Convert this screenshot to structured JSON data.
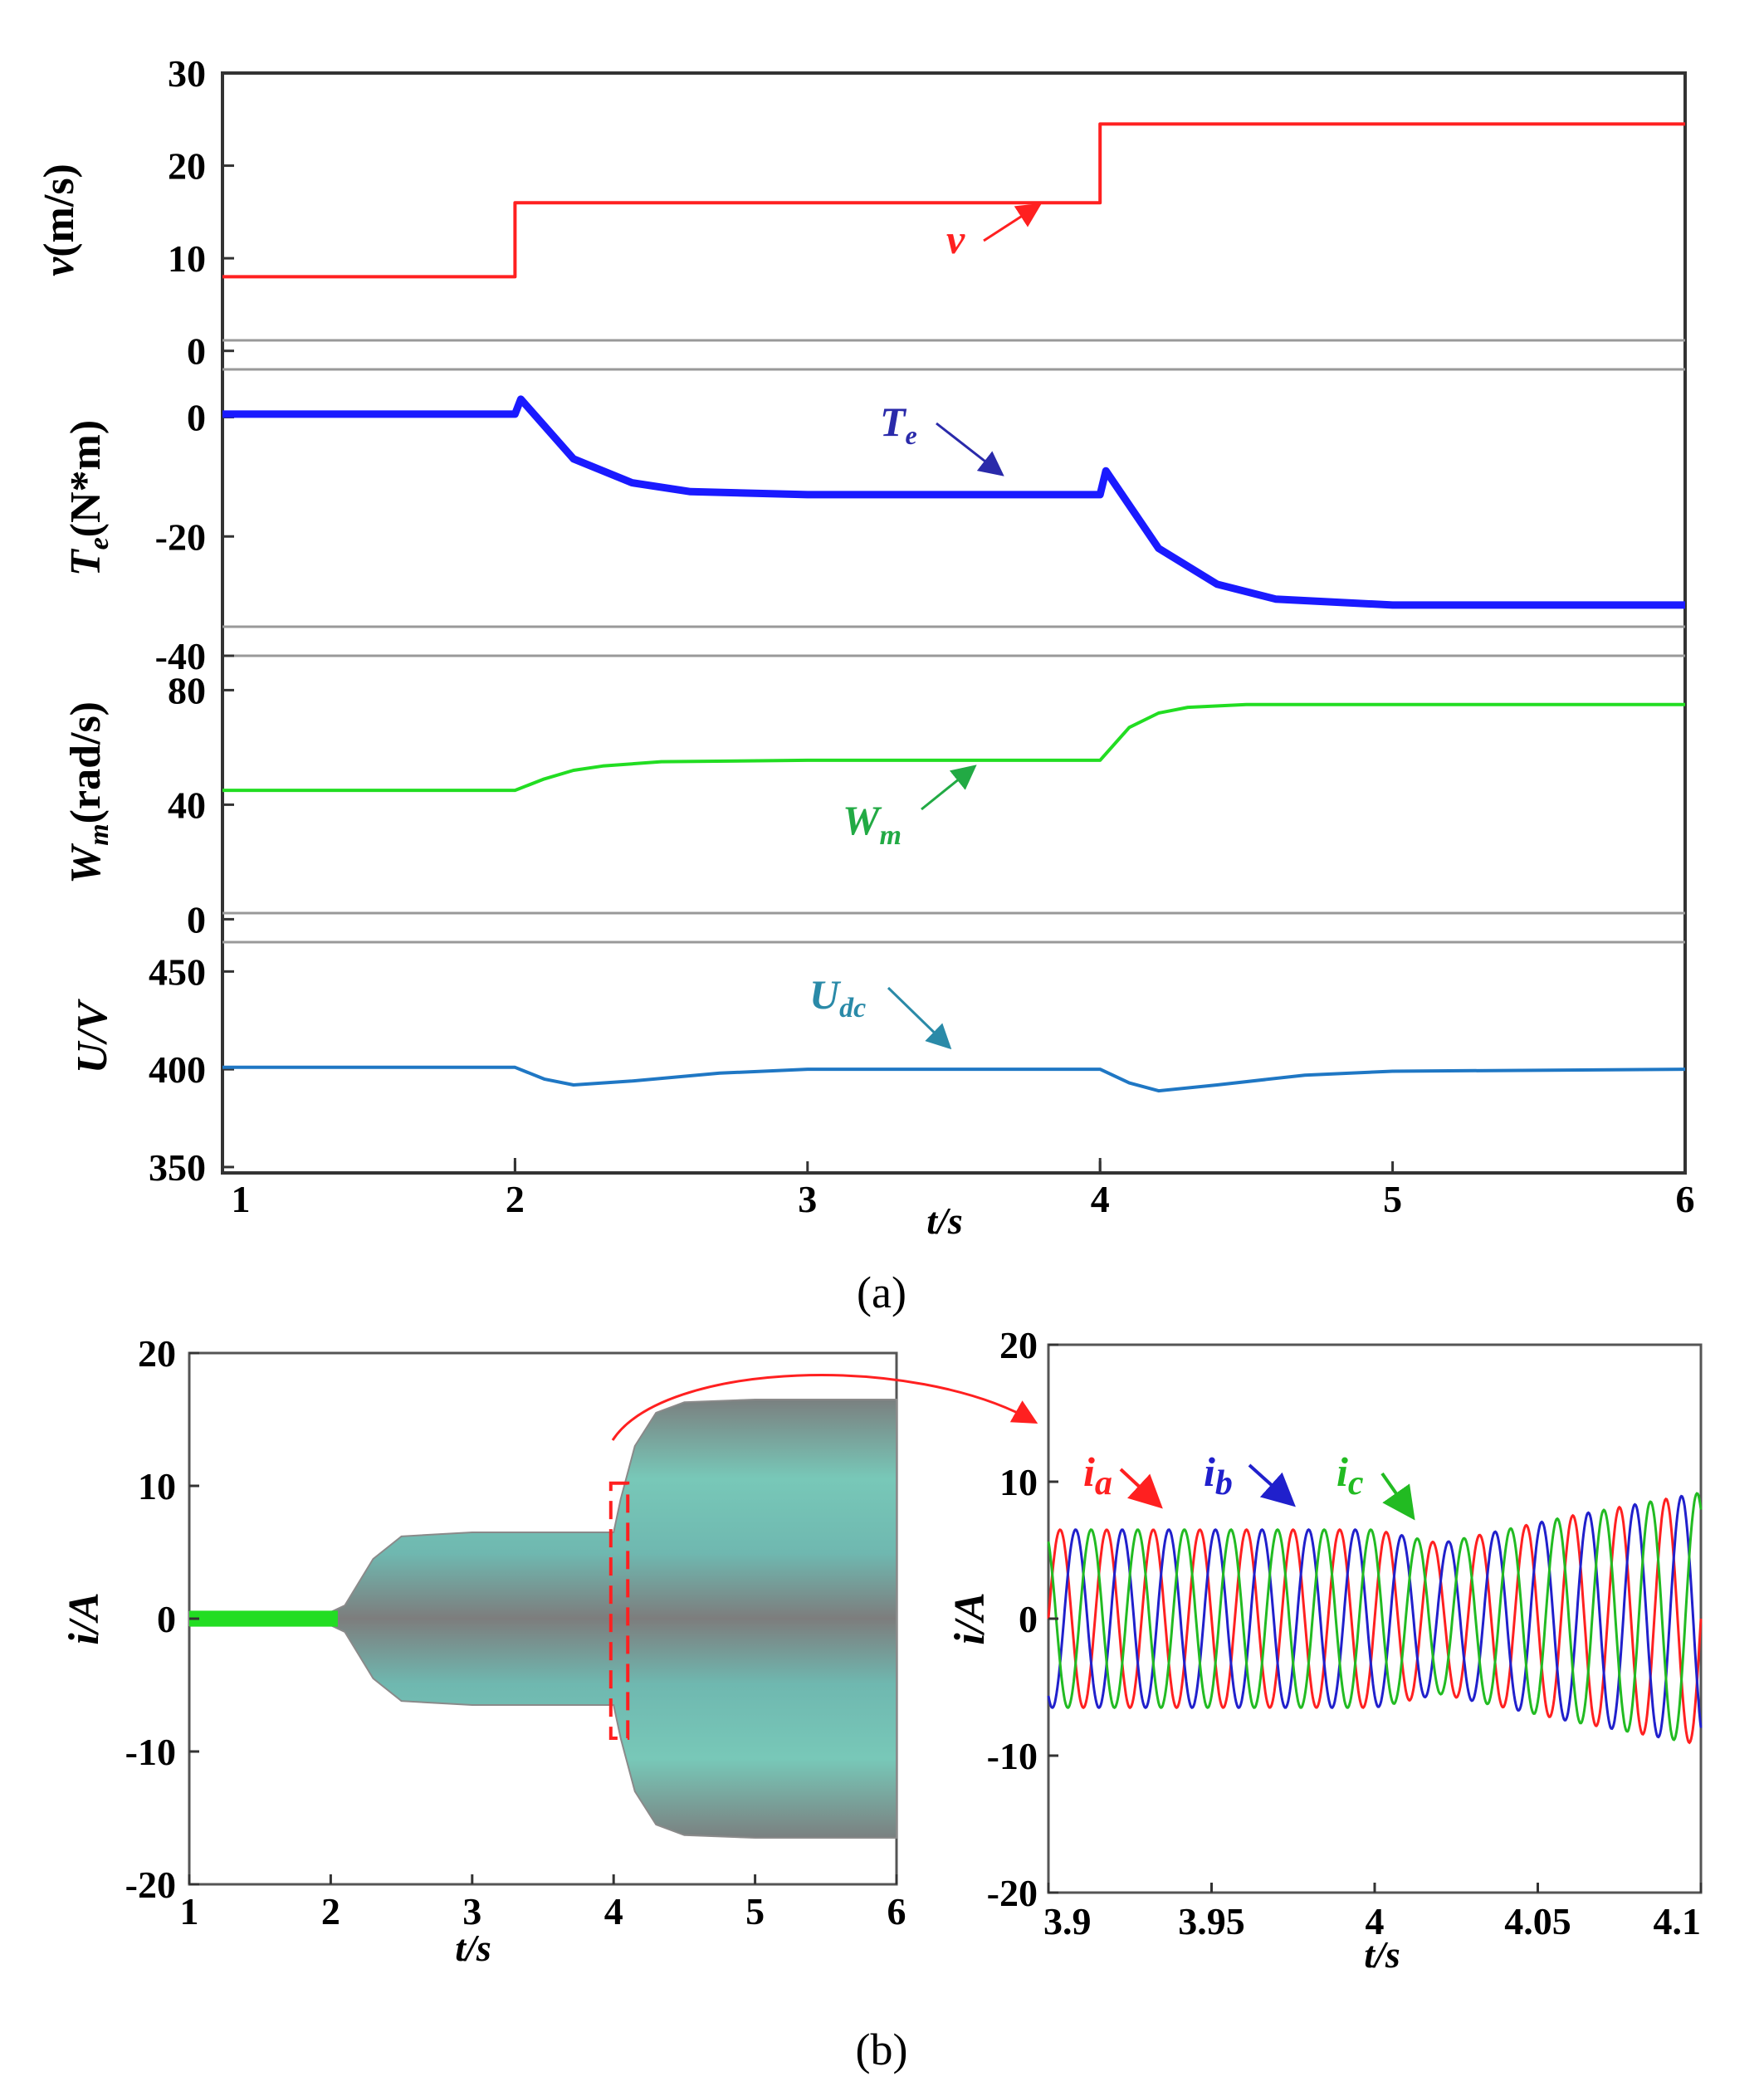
{
  "chart_data": [
    {
      "type": "line",
      "panel": "a",
      "caption": "(a)",
      "xlabel": "t/s",
      "xlim": [
        1,
        6
      ],
      "xticks": [
        "1",
        "2",
        "3",
        "4",
        "5",
        "6"
      ],
      "subplots": [
        {
          "ylabel": "v(m/s)",
          "ylim": [
            -2,
            30
          ],
          "yticks": [
            "30",
            "20",
            "10",
            "0"
          ],
          "series": [
            {
              "name": "v",
              "color": "#ff2020",
              "x": [
                1,
                2,
                2,
                4,
                4,
                6
              ],
              "y": [
                8,
                8,
                16,
                16,
                24.5,
                24.5
              ]
            }
          ],
          "annotation": "v"
        },
        {
          "ylabel": "Te(N*m)",
          "ylim": [
            -40,
            8
          ],
          "yticks": [
            "0",
            "-20",
            "-40"
          ],
          "series": [
            {
              "name": "Te",
              "color": "#1a1aff",
              "x": [
                1,
                2,
                2.02,
                2.2,
                2.4,
                2.6,
                3,
                4,
                4.02,
                4.2,
                4.4,
                4.6,
                5,
                6
              ],
              "y": [
                0.5,
                0.5,
                3,
                -7,
                -11,
                -12.5,
                -13,
                -13,
                -9,
                -22,
                -28,
                -30.5,
                -31.5,
                -31.5
              ]
            }
          ],
          "annotation": "Te"
        },
        {
          "ylabel": "Wm(rad/s)",
          "ylim": [
            -8,
            92
          ],
          "yticks": [
            "80",
            "40",
            "0"
          ],
          "series": [
            {
              "name": "Wm",
              "color": "#22dd22",
              "x": [
                1,
                2,
                2.1,
                2.2,
                2.3,
                2.5,
                3,
                4,
                4.1,
                4.2,
                4.3,
                4.5,
                5,
                6
              ],
              "y": [
                45,
                45,
                49,
                52,
                53.5,
                55,
                55.5,
                55.5,
                67,
                72,
                74,
                75,
                75,
                75
              ]
            }
          ],
          "annotation": "Wm"
        },
        {
          "ylabel": "U/V",
          "ylim": [
            347,
            465
          ],
          "yticks": [
            "450",
            "400",
            "350"
          ],
          "series": [
            {
              "name": "Udc",
              "color": "#1f77c4",
              "x": [
                1,
                2,
                2.1,
                2.2,
                2.4,
                2.7,
                3,
                4,
                4.1,
                4.2,
                4.4,
                4.7,
                5,
                6
              ],
              "y": [
                401,
                401,
                395,
                392,
                394,
                398,
                400,
                400,
                393,
                389,
                392,
                397,
                399,
                400
              ]
            }
          ],
          "annotation": "Udc"
        }
      ]
    },
    {
      "type": "line",
      "panel": "b-left",
      "caption": "(b)",
      "xlabel": "t/s",
      "ylabel": "i/A",
      "xlim": [
        1,
        6
      ],
      "ylim": [
        -20,
        20
      ],
      "xticks": [
        "1",
        "2",
        "3",
        "4",
        "5",
        "6"
      ],
      "yticks": [
        "20",
        "10",
        "0",
        "-10",
        "-20"
      ],
      "series": [
        {
          "name": "current envelope",
          "color": "#808080",
          "x": [
            1,
            2,
            2.1,
            2.3,
            2.5,
            3,
            4,
            4.05,
            4.15,
            4.3,
            4.5,
            5,
            6
          ],
          "y": [
            0.5,
            0.5,
            1,
            4.5,
            6.2,
            6.5,
            6.5,
            9,
            13,
            15.5,
            16.3,
            16.5,
            16.5
          ]
        }
      ]
    },
    {
      "type": "line",
      "panel": "b-right",
      "xlabel": "t/s",
      "ylabel": "i/A",
      "xlim": [
        3.9,
        4.1
      ],
      "ylim": [
        -20,
        20
      ],
      "xticks": [
        "3.9",
        "3.95",
        "4",
        "4.05",
        "4.1"
      ],
      "yticks": [
        "20",
        "10",
        "0",
        "-10",
        "-20"
      ],
      "series": [
        {
          "name": "ia",
          "label": "i",
          "sub": "a",
          "color": "#ff2020",
          "phase_deg": 0
        },
        {
          "name": "ib",
          "label": "i",
          "sub": "b",
          "color": "#2020cc",
          "phase_deg": -120
        },
        {
          "name": "ic",
          "label": "i",
          "sub": "c",
          "color": "#22bb22",
          "phase_deg": 120
        }
      ],
      "amplitude": {
        "x": [
          3.9,
          4.0,
          4.02,
          4.06,
          4.1
        ],
        "y": [
          6.5,
          6.5,
          5.5,
          7.5,
          9.2
        ]
      },
      "frequency_hz": 70
    }
  ]
}
